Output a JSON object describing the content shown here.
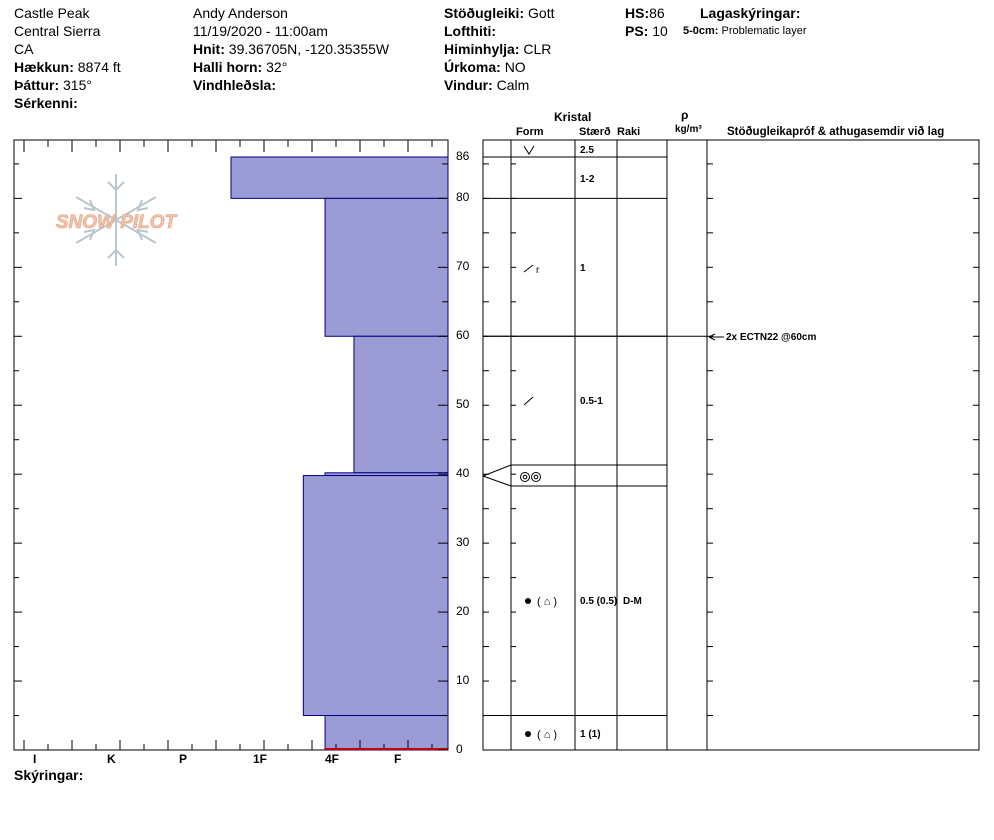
{
  "site": {
    "location": "Castle Peak",
    "range": "Central Sierra",
    "state": "CA",
    "elevation_label": "Hækkun:",
    "elevation_value": "8874 ft",
    "aspect_label": "Þáttur:",
    "aspect_value": "315°",
    "features_label": "Sérkenni:"
  },
  "observer": {
    "name": "Andy Anderson",
    "datetime": "11/19/2020 - 11:00am",
    "coords_label": "Hnit:",
    "coords_value": "39.36705N, -120.35355W",
    "slope_label": "Halli horn:",
    "slope_value": "32°",
    "wind_loading_label": "Vindhleðsla:"
  },
  "conditions": {
    "stability_label": "Stöðugleiki:",
    "stability_value": "Gott",
    "air_temp_label": "Lofthiti:",
    "sky_label": "Himinhylja:",
    "sky_value": "CLR",
    "precip_label": "Úrkoma:",
    "precip_value": "NO",
    "wind_label": "Vindur:",
    "wind_value": "Calm"
  },
  "snow": {
    "hs_label": "HS:",
    "hs_value": "86",
    "ps_label": "PS:",
    "ps_value": "10",
    "layer_notes_label": "Lagaskýringar:",
    "layer_note_depth": "5-0cm:",
    "layer_note_text": "Problematic layer"
  },
  "logo": {
    "text": "SNOW PILOT"
  },
  "columns": {
    "crystal": "Kristal",
    "form": "Form",
    "size": "Stærð",
    "moisture": "Raki",
    "rho": "ρ",
    "density_unit": "kg/m³",
    "tests": "Stöðugleikapróf & athugasemdir við lag"
  },
  "test_result": "2x ECTN22 @60cm",
  "footer": {
    "notes_label": "Skýringar:"
  },
  "colors": {
    "hardness_fill": "#9b9bd6",
    "hardness_stroke": "#000080",
    "problem_layer": "#cc0000",
    "logo_text": "#f2c3ad",
    "logo_flake": "#b8c6d0"
  },
  "chart_data": {
    "type": "bar",
    "orientation": "horizontal-steps",
    "ylim": [
      0,
      86
    ],
    "y_ticks": [
      "86",
      "80",
      "70",
      "60",
      "50",
      "40",
      "30",
      "20",
      "10",
      "0"
    ],
    "y_tick_values": [
      86,
      80,
      70,
      60,
      50,
      40,
      30,
      20,
      10,
      0
    ],
    "hardness_scale": [
      "I",
      "K",
      "P",
      "1F",
      "4F",
      "F"
    ],
    "hardness_positions": [
      0.5,
      1.5,
      2.5,
      3.5,
      4.5,
      5.5
    ],
    "layers": [
      {
        "top": 86,
        "bottom": 80,
        "hardness": 3.0,
        "form": "precip",
        "size": "2.5",
        "moisture": ""
      },
      {
        "top": 80,
        "bottom": 60,
        "hardness": 1.7,
        "form": "decomposing",
        "size": "1-2",
        "moisture": ""
      },
      {
        "top": 60,
        "bottom": 40.2,
        "hardness": 1.3,
        "form": "decomposing",
        "size": "1",
        "moisture": ""
      },
      {
        "top": 40.2,
        "bottom": 39.8,
        "hardness": 1.7,
        "form": "surface-hoar",
        "size": "0.5-1",
        "moisture": ""
      },
      {
        "top": 39.8,
        "bottom": 5,
        "hardness": 2.0,
        "form": "rounded-faceted",
        "size": "0.5 (0.5)",
        "moisture": "D-M"
      },
      {
        "top": 5,
        "bottom": 0,
        "hardness": 1.7,
        "form": "rounded-faceted",
        "size": "1 (1)",
        "moisture": ""
      }
    ],
    "grid": false,
    "legend": "none"
  }
}
